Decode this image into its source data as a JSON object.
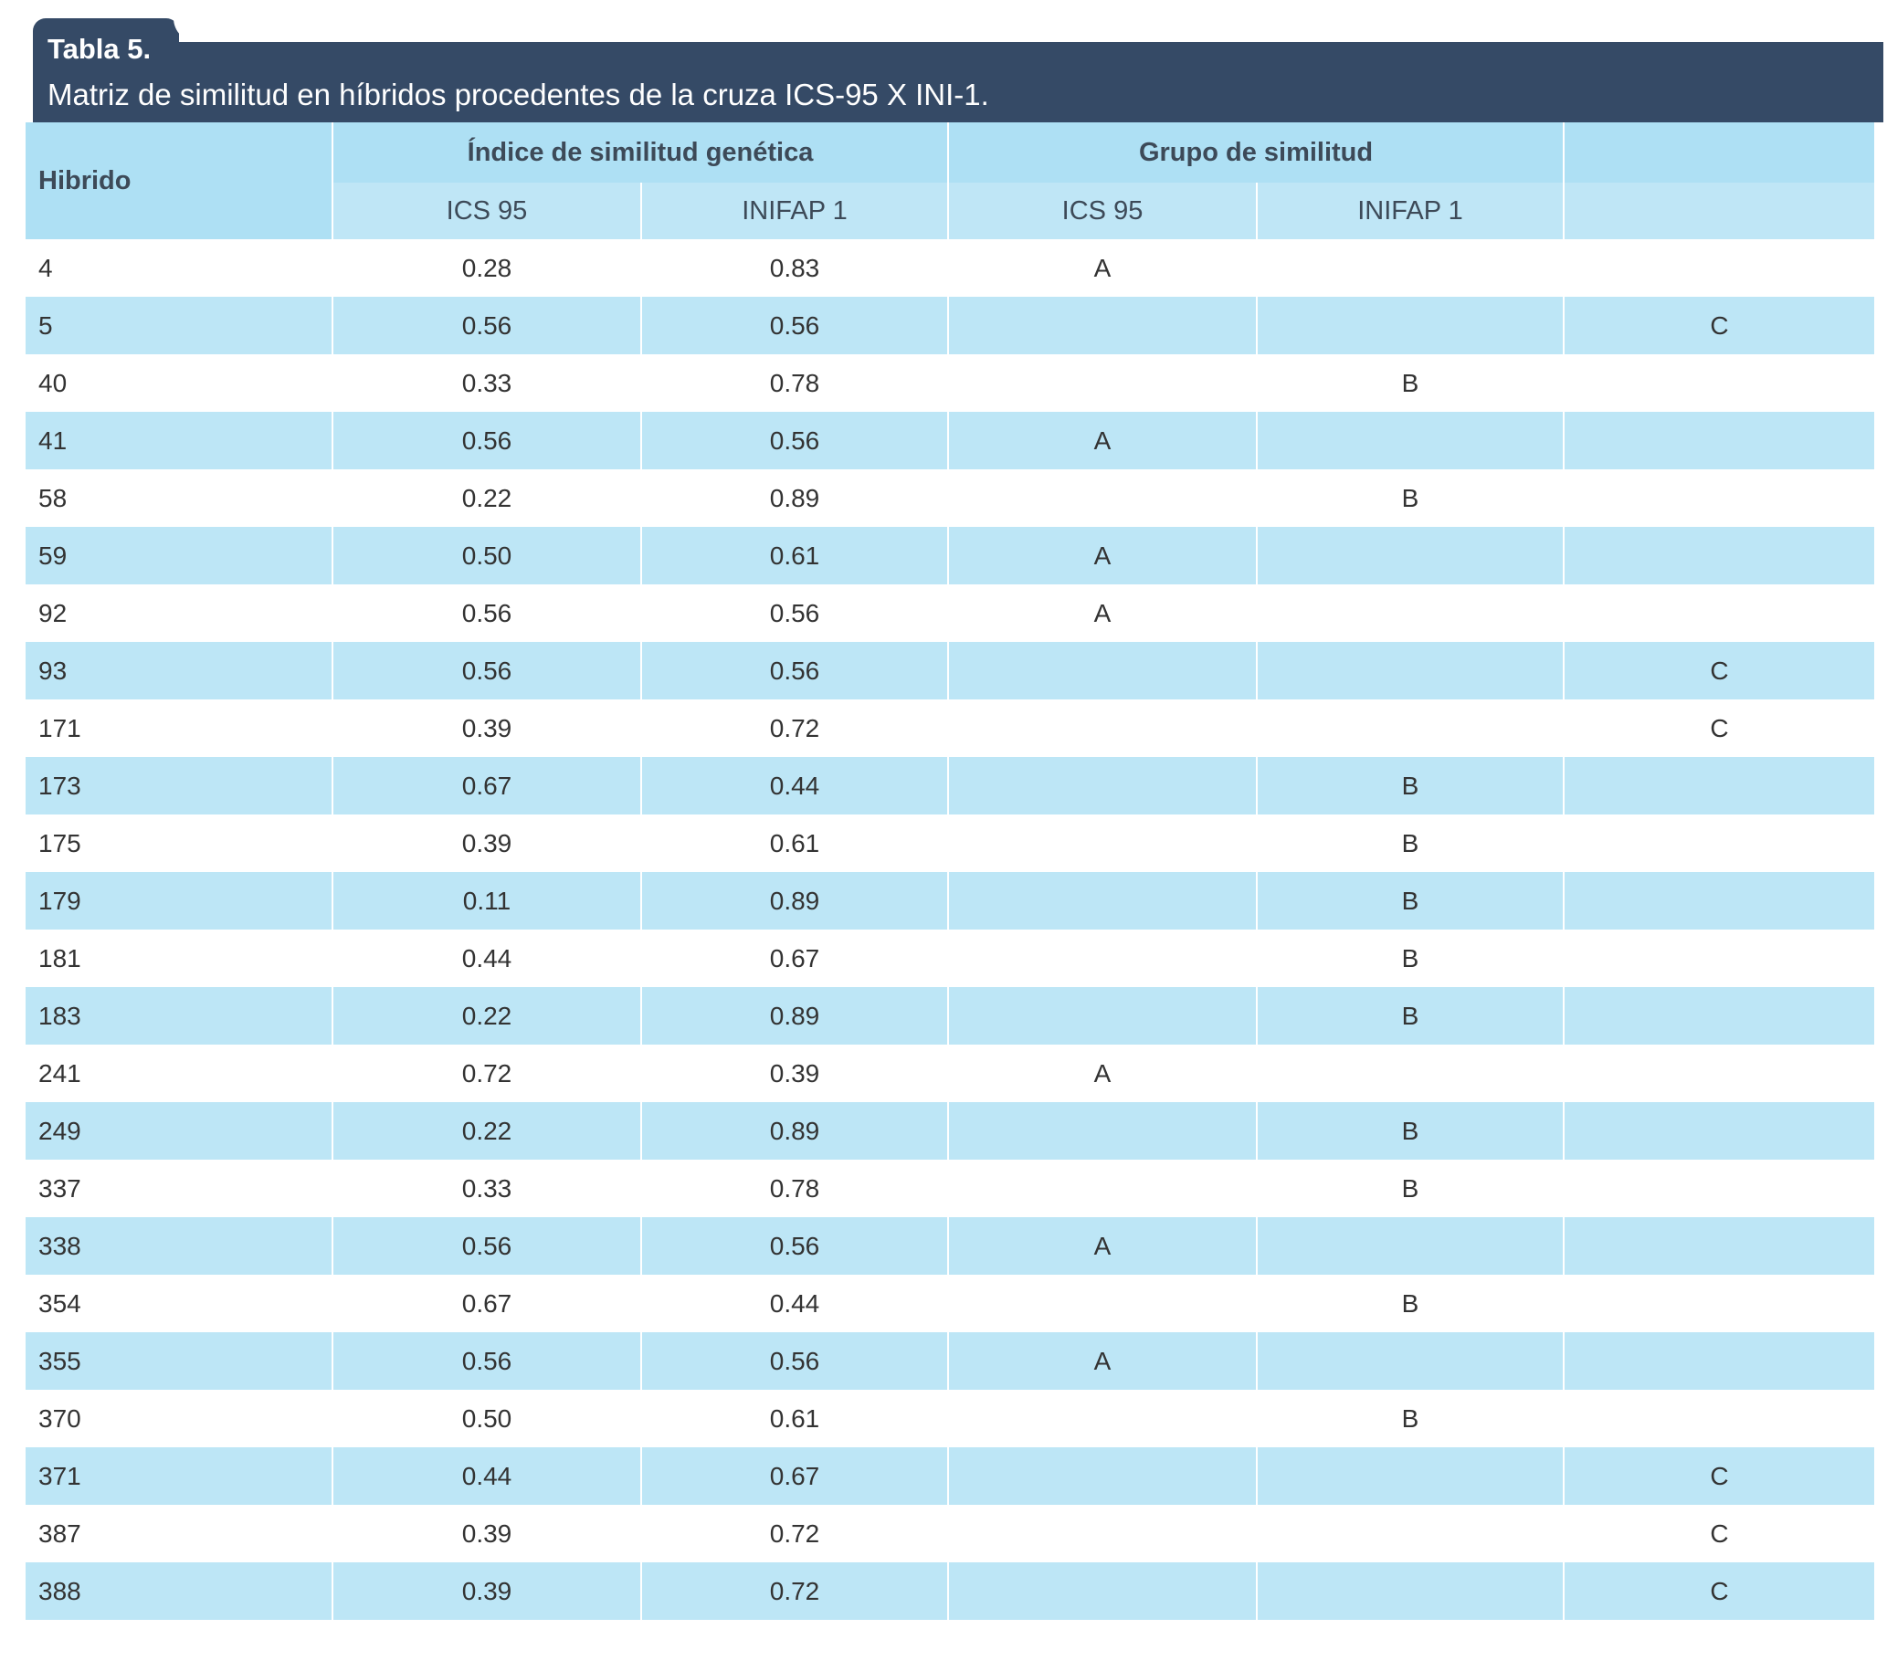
{
  "caption": {
    "label": "Tabla 5.",
    "text": "Matriz de similitud en híbridos procedentes de la cruza ICS-95 X INI-1."
  },
  "header": {
    "hibrido": "Hibrido",
    "group1": "Índice de similitud genética",
    "group2": "Grupo de similitud",
    "sub": [
      "ICS 95",
      "INIFAP 1",
      "ICS 95",
      "INIFAP 1",
      ""
    ]
  },
  "rows": [
    [
      "4",
      "0.28",
      "0.83",
      "A",
      "",
      ""
    ],
    [
      "5",
      "0.56",
      "0.56",
      "",
      "",
      "C"
    ],
    [
      "40",
      "0.33",
      "0.78",
      "",
      "B",
      ""
    ],
    [
      "41",
      "0.56",
      "0.56",
      "A",
      "",
      ""
    ],
    [
      "58",
      "0.22",
      "0.89",
      "",
      "B",
      ""
    ],
    [
      "59",
      "0.50",
      "0.61",
      "A",
      "",
      ""
    ],
    [
      "92",
      "0.56",
      "0.56",
      "A",
      "",
      ""
    ],
    [
      "93",
      "0.56",
      "0.56",
      "",
      "",
      "C"
    ],
    [
      "171",
      "0.39",
      "0.72",
      "",
      "",
      "C"
    ],
    [
      "173",
      "0.67",
      "0.44",
      "",
      "B",
      ""
    ],
    [
      "175",
      "0.39",
      "0.61",
      "",
      "B",
      ""
    ],
    [
      "179",
      "0.11",
      "0.89",
      "",
      "B",
      ""
    ],
    [
      "181",
      "0.44",
      "0.67",
      "",
      "B",
      ""
    ],
    [
      "183",
      "0.22",
      "0.89",
      "",
      "B",
      ""
    ],
    [
      "241",
      "0.72",
      "0.39",
      "A",
      "",
      ""
    ],
    [
      "249",
      "0.22",
      "0.89",
      "",
      "B",
      ""
    ],
    [
      "337",
      "0.33",
      "0.78",
      "",
      "B",
      ""
    ],
    [
      "338",
      "0.56",
      "0.56",
      "A",
      "",
      ""
    ],
    [
      "354",
      "0.67",
      "0.44",
      "",
      "B",
      ""
    ],
    [
      "355",
      "0.56",
      "0.56",
      "A",
      "",
      ""
    ],
    [
      "370",
      "0.50",
      "0.61",
      "",
      "B",
      ""
    ],
    [
      "371",
      "0.44",
      "0.67",
      "",
      "",
      "C"
    ],
    [
      "387",
      "0.39",
      "0.72",
      "",
      "",
      "C"
    ],
    [
      "388",
      "0.39",
      "0.72",
      "",
      "",
      "C"
    ]
  ]
}
